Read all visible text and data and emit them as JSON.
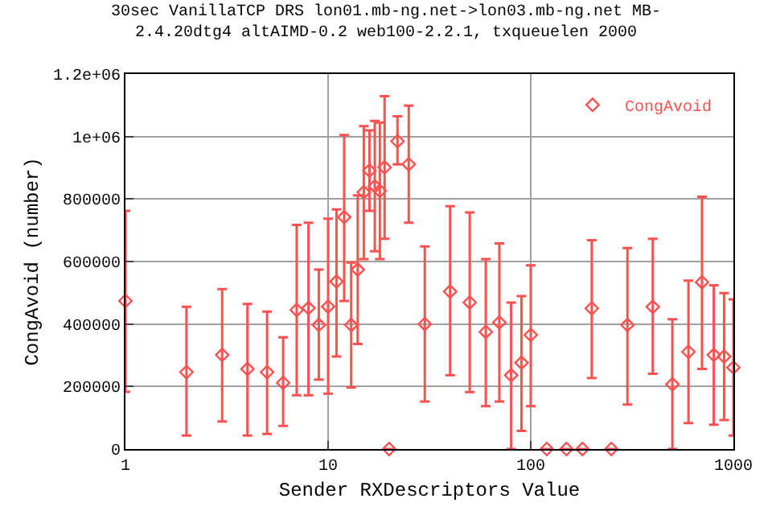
{
  "chart_data": {
    "type": "scatter",
    "title": "30sec VanillaTCP DRS lon01.mb-ng.net->lon03.mb-ng.net MB-\n2.4.20dtg4 altAIMD-0.2 web100-2.2.1, txqueuelen 2000",
    "xlabel": "Sender RXDescriptors Value",
    "ylabel": "CongAvoid (number)",
    "log": "x",
    "grid": true,
    "legend": "top right",
    "marker": "diamond",
    "xlim": [
      1,
      1000
    ],
    "xticks": [
      1,
      10,
      100,
      1000
    ],
    "ylim": [
      0,
      1200000
    ],
    "yticks": [
      0,
      200000,
      400000,
      600000,
      800000,
      {
        "value": 1000000,
        "label": "1e+06"
      },
      {
        "value": 1200000,
        "label": "1.2e+06"
      }
    ],
    "series": [
      {
        "name": "CongAvoid",
        "color": "#ff5050",
        "x": [
          1,
          2,
          3,
          4,
          5,
          6,
          7,
          8,
          9,
          10,
          11,
          12,
          13,
          14,
          15,
          16,
          17,
          18,
          19,
          20,
          22,
          25,
          30,
          40,
          50,
          60,
          70,
          80,
          90,
          100,
          120,
          150,
          180,
          200,
          250,
          300,
          400,
          500,
          600,
          700,
          800,
          900,
          1000
        ],
        "values": [
          474000,
          246000,
          301000,
          256000,
          246000,
          212000,
          445000,
          451000,
          397000,
          456000,
          536000,
          742000,
          397000,
          574000,
          822000,
          891000,
          841000,
          826000,
          901000,
          0,
          985000,
          911000,
          400000,
          504000,
          469000,
          375000,
          405000,
          236000,
          276000,
          365000,
          0,
          0,
          0,
          450000,
          0,
          397000,
          455000,
          207000,
          311000,
          534000,
          301000,
          296000,
          261000
        ],
        "errors": [
          [
            183000,
            762000
          ],
          [
            43000,
            455000
          ],
          [
            88000,
            512000
          ],
          [
            43000,
            464000
          ],
          [
            48000,
            440000
          ],
          [
            74000,
            357000
          ],
          [
            172000,
            717000
          ],
          [
            172000,
            724000
          ],
          [
            222000,
            574000
          ],
          [
            177000,
            737000
          ],
          [
            296000,
            767000
          ],
          [
            474000,
            1005000
          ],
          [
            197000,
            597000
          ],
          [
            336000,
            812000
          ],
          [
            608000,
            1033000
          ],
          [
            762000,
            1020000
          ],
          [
            633000,
            1050000
          ],
          [
            608000,
            1045000
          ],
          [
            673000,
            1129000
          ],
          null,
          [
            911000,
            1065000
          ],
          [
            724000,
            1099000
          ],
          [
            152000,
            648000
          ],
          [
            236000,
            777000
          ],
          [
            182000,
            757000
          ],
          [
            137000,
            608000
          ],
          [
            152000,
            658000
          ],
          [
            0,
            469000
          ],
          [
            58000,
            489000
          ],
          [
            137000,
            588000
          ],
          null,
          null,
          null,
          [
            227000,
            668000
          ],
          null,
          [
            142000,
            643000
          ],
          [
            241000,
            673000
          ],
          [
            0,
            415000
          ],
          [
            83000,
            539000
          ],
          [
            256000,
            807000
          ],
          [
            78000,
            524000
          ],
          [
            93000,
            499000
          ],
          [
            43000,
            479000
          ]
        ]
      }
    ]
  }
}
